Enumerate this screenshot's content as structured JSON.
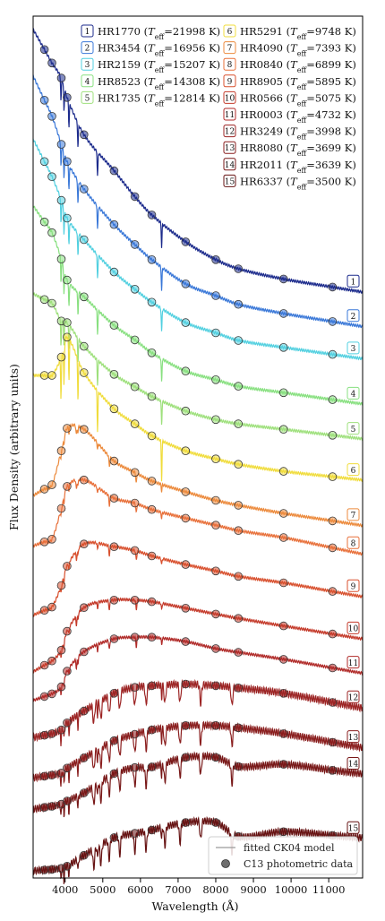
{
  "chart_data": {
    "type": "line",
    "title": "",
    "xlabel": "Wavelength (Å)",
    "ylabel": "Flux Density (arbitrary units)",
    "xlim": [
      3150,
      11900
    ],
    "xticks": [
      4000,
      5000,
      6000,
      7000,
      8000,
      9000,
      10000,
      11000
    ],
    "ylim": [
      0,
      16
    ],
    "yticks": [],
    "grid": false,
    "legend_position": "lower-right",
    "legend": {
      "model_label": "fitted CK04 model",
      "data_label": "C13 photometric data"
    },
    "phot_wavelengths": [
      3450,
      3650,
      3900,
      4050,
      4500,
      5300,
      5850,
      6300,
      7200,
      8000,
      8600,
      9800,
      11100
    ],
    "series": [
      {
        "id": "1",
        "star": "HR1770",
        "teff": 21998,
        "color": "#1c2b8c",
        "label": "HR1770 (T_eff=21998 K)",
        "phot": [
          15.38,
          15.13,
          14.85,
          14.49,
          13.8,
          13.13,
          12.65,
          12.31,
          11.81,
          11.48,
          11.31,
          11.12,
          10.97
        ]
      },
      {
        "id": "2",
        "star": "HR3454",
        "teff": 16956,
        "color": "#3a78d8",
        "label": "HR3454 (T_eff=16956 K)",
        "phot": [
          14.44,
          14.14,
          13.62,
          13.3,
          12.79,
          12.13,
          11.76,
          11.48,
          11.03,
          10.81,
          10.65,
          10.48,
          10.33
        ]
      },
      {
        "id": "3",
        "star": "HR2159",
        "teff": 15207,
        "color": "#52d0e0",
        "label": "HR2159 (T_eff=15207 K)",
        "phot": [
          13.3,
          13.02,
          12.58,
          12.25,
          11.85,
          11.25,
          10.93,
          10.69,
          10.31,
          10.12,
          9.98,
          9.85,
          9.72
        ]
      },
      {
        "id": "4",
        "star": "HR8523",
        "teff": 14308,
        "color": "#88e080",
        "label": "HR8523 (T_eff=14308 K)",
        "phot": [
          12.18,
          11.98,
          11.49,
          11.1,
          10.79,
          10.26,
          9.99,
          9.75,
          9.41,
          9.25,
          9.13,
          9.01,
          8.88
        ]
      },
      {
        "id": "5",
        "star": "HR1735",
        "teff": 12814,
        "color": "#9ee07c",
        "label": "HR1735 (T_eff=12814 K)",
        "phot": [
          10.74,
          10.67,
          10.34,
          10.31,
          9.87,
          9.35,
          9.12,
          8.94,
          8.67,
          8.51,
          8.43,
          8.33,
          8.22
        ]
      },
      {
        "id": "6",
        "star": "HR5291",
        "teff": 9748,
        "color": "#f0dc3c",
        "label": "HR5291 (T_eff=9748 K)",
        "phot": [
          9.33,
          9.33,
          9.67,
          10.04,
          9.38,
          8.71,
          8.43,
          8.21,
          7.93,
          7.78,
          7.68,
          7.55,
          7.45
        ]
      },
      {
        "id": "7",
        "star": "HR4090",
        "teff": 7393,
        "color": "#ec8a3c",
        "label": "HR4090 (T_eff=7393 K)",
        "phot": [
          7.22,
          7.3,
          7.93,
          8.35,
          8.33,
          7.74,
          7.53,
          7.37,
          7.17,
          7.01,
          6.92,
          6.77,
          6.63
        ]
      },
      {
        "id": "8",
        "star": "HR0840",
        "teff": 6899,
        "color": "#e8703a",
        "label": "HR0840 (T_eff=6899 K)",
        "phot": [
          6.24,
          6.29,
          6.86,
          7.27,
          7.39,
          7.05,
          6.96,
          6.84,
          6.68,
          6.55,
          6.45,
          6.32,
          6.13
        ]
      },
      {
        "id": "9",
        "star": "HR8905",
        "teff": 5895,
        "color": "#d8502e",
        "label": "HR8905 (T_eff=5895 K)",
        "phot": [
          4.97,
          5.03,
          5.43,
          5.79,
          6.2,
          6.15,
          6.08,
          5.98,
          5.82,
          5.7,
          5.6,
          5.48,
          5.32
        ]
      },
      {
        "id": "10",
        "star": "HR0566",
        "teff": 5075,
        "color": "#c43a2a",
        "label": "HR0566 (T_eff=5075 K)",
        "phot": [
          3.95,
          4.03,
          4.23,
          4.58,
          5.02,
          5.16,
          5.16,
          5.13,
          5.01,
          4.9,
          4.82,
          4.68,
          4.53
        ]
      },
      {
        "id": "11",
        "star": "HR0003",
        "teff": 4732,
        "color": "#b02a28",
        "label": "HR0003 (T_eff=4732 K)",
        "phot": [
          3.37,
          3.42,
          3.55,
          3.84,
          4.2,
          4.44,
          4.47,
          4.47,
          4.39,
          4.26,
          4.19,
          4.06,
          3.9
        ]
      },
      {
        "id": "12",
        "star": "HR3249",
        "teff": 3998,
        "color": "#9c2424",
        "label": "HR3249 (T_eff=3998 K)",
        "phot": [
          2.65,
          2.68,
          2.75,
          2.88,
          3.1,
          3.43,
          3.54,
          3.57,
          3.6,
          3.57,
          3.53,
          3.43,
          3.26
        ]
      },
      {
        "id": "13",
        "star": "HR8080",
        "teff": 3699,
        "color": "#8a1e1e",
        "label": "HR8080 (T_eff=3699 K)",
        "phot": [
          1.89,
          1.91,
          1.95,
          2.04,
          2.23,
          2.55,
          2.67,
          2.75,
          2.83,
          2.83,
          2.79,
          2.68,
          2.52
        ]
      },
      {
        "id": "14",
        "star": "HR2011",
        "teff": 3639,
        "color": "#781818",
        "label": "HR2011 (T_eff=3639 K)",
        "phot": [
          1.31,
          1.33,
          1.37,
          1.43,
          1.58,
          1.94,
          2.05,
          2.06,
          2.24,
          2.24,
          2.07,
          2.11,
          2.0
        ]
      },
      {
        "id": "15",
        "star": "HR6337",
        "teff": 3500,
        "color": "#661212",
        "label": "HR6337 (T_eff=3500 K)",
        "phot": [
          0.15,
          0.16,
          0.18,
          0.22,
          0.42,
          0.75,
          0.83,
          0.89,
          1.03,
          1.03,
          0.77,
          0.86,
          0.79
        ]
      }
    ]
  }
}
